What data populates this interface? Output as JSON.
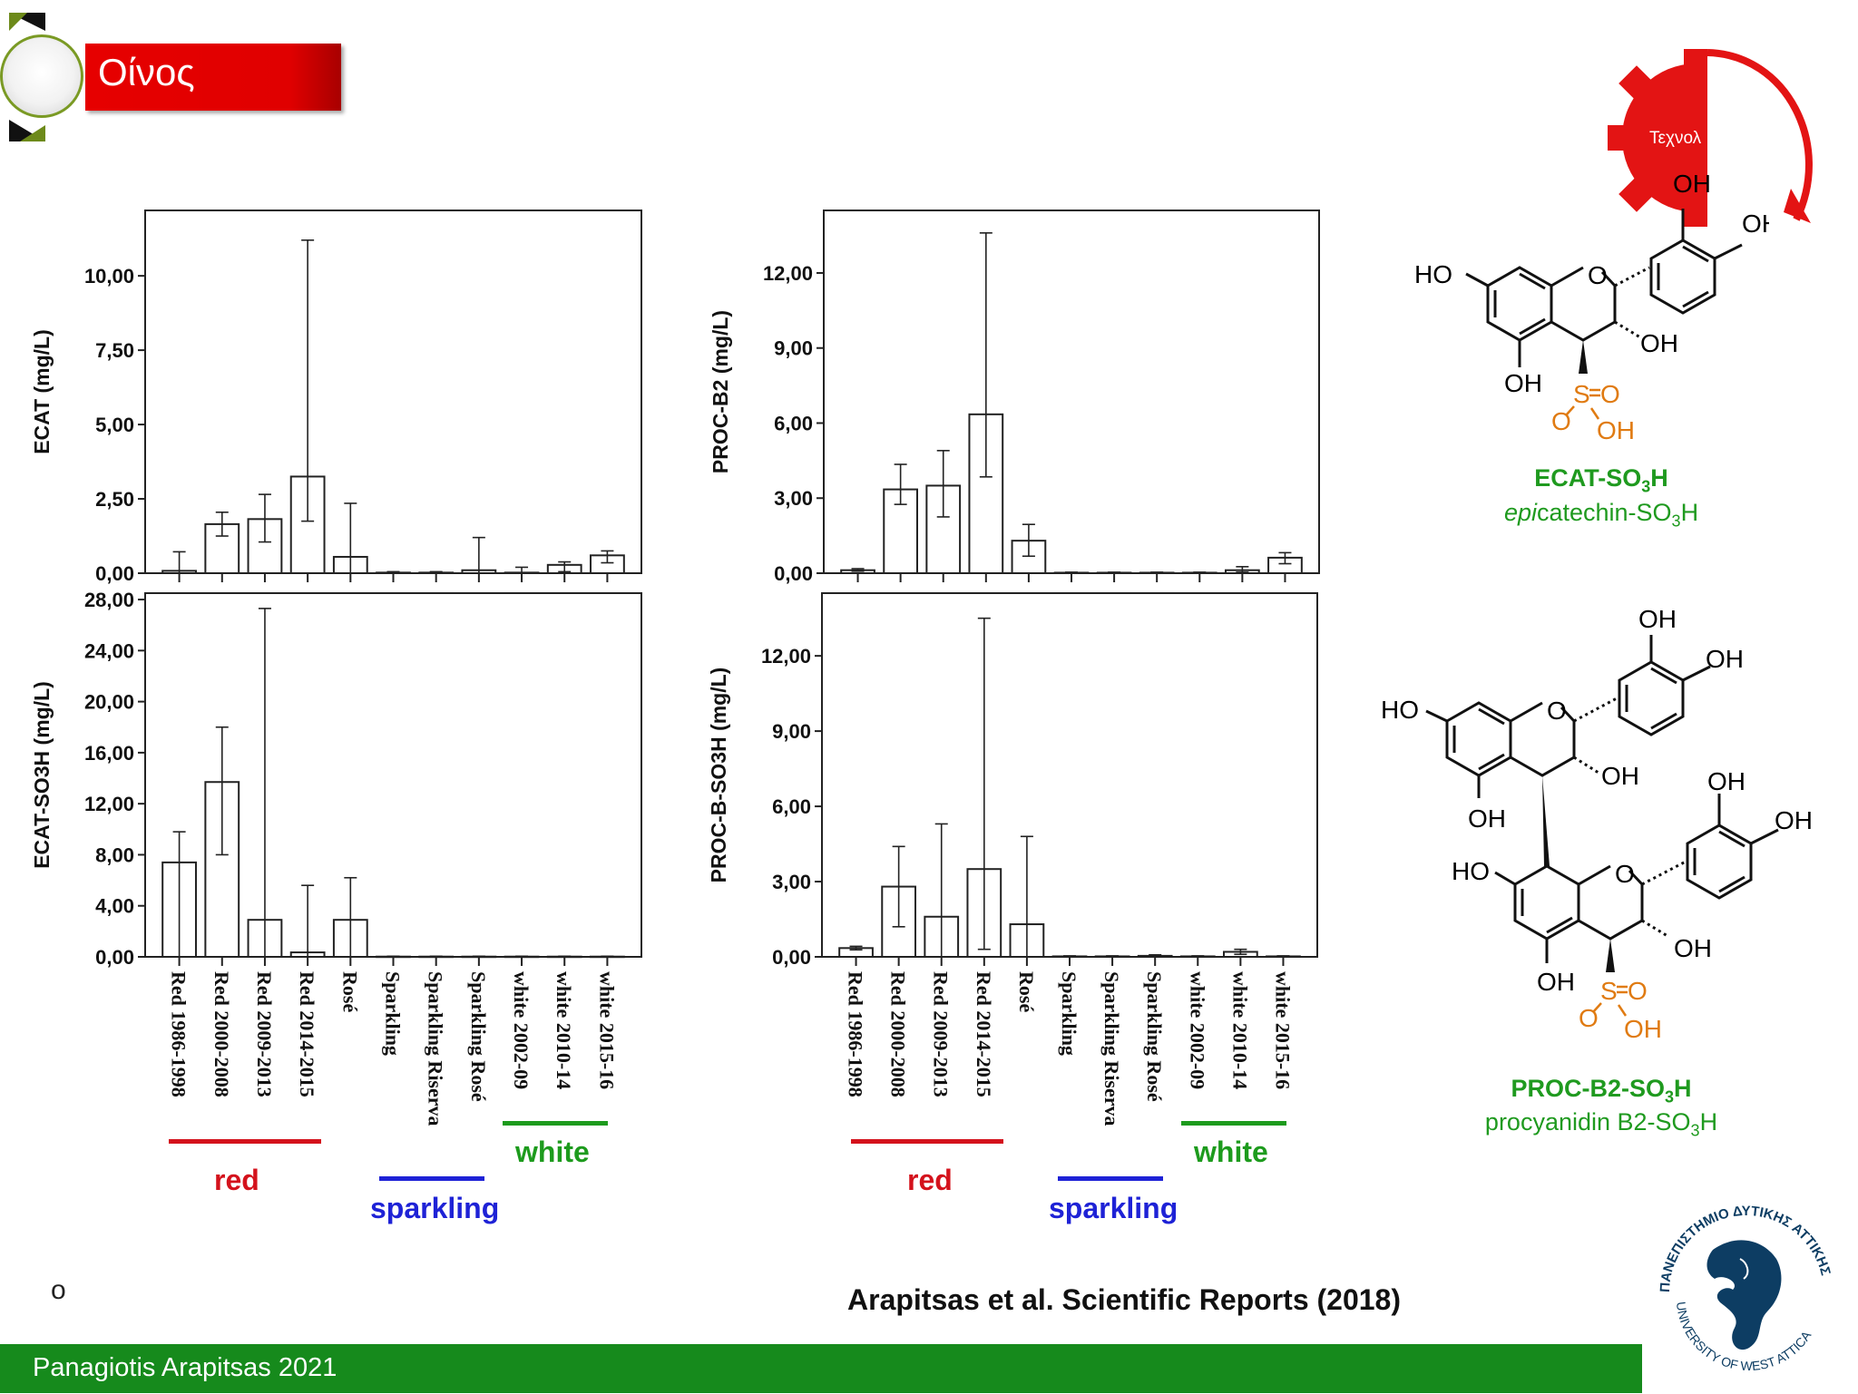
{
  "slide": {
    "title": "Οίνος",
    "footer": "Panagiotis Arapitsas 2021",
    "citation": "Arapitsas et al. Scientific Reports (2018)",
    "bullet": "o",
    "gear_label": "Τεχνολ"
  },
  "colors": {
    "red": "#d4121c",
    "blue": "#1e22d6",
    "green": "#1d9b1d",
    "footer": "#168a1c",
    "orange": "#e07b12"
  },
  "groups": [
    {
      "label": "red",
      "color": "#d4121c"
    },
    {
      "label": "sparkling",
      "color": "#1e22d6"
    },
    {
      "label": "white",
      "color": "#1d9b1d"
    }
  ],
  "chart_data": [
    {
      "type": "bar",
      "ylabel": "ECAT  (mg/L)",
      "yticks": [
        "0,00",
        "2,50",
        "5,00",
        "7,50",
        "10,00"
      ],
      "ylim": [
        0,
        12.2
      ],
      "categories": [
        "Red 1986-1998",
        "Red 2000-2008",
        "Red 2009-2013",
        "Red 2014-2015",
        "Rosé",
        "Sparkling",
        "Sparkling Riserva",
        "Sparkling Rosé",
        "white 2002-09",
        "white 2010-14",
        "white 2015-16"
      ],
      "values": [
        0.08,
        1.65,
        1.82,
        3.25,
        0.55,
        0.02,
        0.02,
        0.1,
        0.02,
        0.28,
        0.6
      ],
      "err_low": [
        -0.5,
        1.25,
        1.05,
        1.75,
        -0.6,
        -0.02,
        -0.02,
        -0.8,
        -0.2,
        0.05,
        0.35
      ],
      "err_high": [
        0.72,
        2.05,
        2.65,
        11.2,
        2.35,
        0.05,
        0.05,
        1.2,
        0.2,
        0.38,
        0.75
      ]
    },
    {
      "type": "bar",
      "ylabel": "PROC-B2  (mg/L)",
      "yticks": [
        "0,00",
        "3,00",
        "6,00",
        "9,00",
        "12,00"
      ],
      "ylim": [
        0,
        14.5
      ],
      "categories": [
        "Red 1986-1998",
        "Red 2000-2008",
        "Red 2009-2013",
        "Red 2014-2015",
        "Rosé",
        "Sparkling",
        "Sparkling Riserva",
        "Sparkling Rosé",
        "white 2002-09",
        "white 2010-14",
        "white 2015-16"
      ],
      "values": [
        0.12,
        3.35,
        3.5,
        6.35,
        1.3,
        0.02,
        0.02,
        0.02,
        0.02,
        0.12,
        0.62
      ],
      "err_low": [
        0.08,
        2.75,
        2.25,
        3.85,
        0.68,
        0.0,
        0.0,
        0.0,
        0.0,
        0.04,
        0.38
      ],
      "err_high": [
        0.18,
        4.35,
        4.9,
        13.6,
        1.95,
        0.04,
        0.04,
        0.04,
        0.04,
        0.26,
        0.82
      ]
    },
    {
      "type": "bar",
      "ylabel": "ECAT-SO3H  (mg/L)",
      "yticks": [
        "0,00",
        "4,00",
        "8,00",
        "12,00",
        "16,00",
        "20,00",
        "24,00",
        "28,00"
      ],
      "ylim": [
        0,
        28.5
      ],
      "categories": [
        "Red 1986-1998",
        "Red 2000-2008",
        "Red 2009-2013",
        "Red 2014-2015",
        "Rosé",
        "Sparkling",
        "Sparkling Riserva",
        "Sparkling Rosé",
        "white 2002-09",
        "white 2010-14",
        "white 2015-16"
      ],
      "values": [
        7.4,
        13.7,
        2.9,
        0.35,
        2.9,
        0.02,
        0.02,
        0.02,
        0.02,
        0.02,
        0.02
      ],
      "err_low": [
        0.0,
        8.0,
        0.0,
        0.0,
        0.0,
        0.0,
        0.0,
        0.0,
        0.0,
        0.0,
        0.0
      ],
      "err_high": [
        9.8,
        18.0,
        27.3,
        5.6,
        6.2,
        0.05,
        0.05,
        0.05,
        0.05,
        0.05,
        0.05
      ]
    },
    {
      "type": "bar",
      "ylabel": "PROC-B-SO3H  (mg/L)",
      "yticks": [
        "0,00",
        "3,00",
        "6,00",
        "9,00",
        "12,00"
      ],
      "ylim": [
        0,
        14.5
      ],
      "categories": [
        "Red 1986-1998",
        "Red 2000-2008",
        "Red 2009-2013",
        "Red 2014-2015",
        "Rosé",
        "Sparkling",
        "Sparkling Riserva",
        "Sparkling Rosé",
        "white 2002-09",
        "white 2010-14",
        "white 2015-16"
      ],
      "values": [
        0.35,
        2.8,
        1.6,
        3.5,
        1.3,
        0.02,
        0.02,
        0.04,
        0.02,
        0.2,
        0.02
      ],
      "err_low": [
        0.28,
        1.2,
        0.0,
        0.3,
        0.0,
        0.0,
        0.0,
        0.0,
        0.0,
        0.1,
        0.0
      ],
      "err_high": [
        0.42,
        4.4,
        5.3,
        13.5,
        4.8,
        0.04,
        0.04,
        0.08,
        0.04,
        0.3,
        0.04
      ]
    }
  ],
  "structures": {
    "ecat": {
      "bold_name": "ECAT-SO",
      "bold_sub": "3",
      "bold_tail": "H",
      "italic_prefix": "epi",
      "name_rest": "catechin-SO",
      "name_sub": "3",
      "name_tail": "H"
    },
    "proc": {
      "bold_name": "PROC-B2-SO",
      "bold_sub": "3",
      "bold_tail": "H",
      "name_rest": "procyanidin B2-SO",
      "name_sub": "3",
      "name_tail": "H"
    },
    "atoms": {
      "oh": "OH",
      "ho": "HO",
      "o": "O",
      "s": "S"
    }
  },
  "logo": {
    "text_top": "ΠΑΝΕΠΙΣΤΗΜΙΟ ΔΥΤΙΚΗΣ ΑΤΤΙΚΗΣ",
    "text_bottom": "UNIVERSITY OF WEST ATTICA"
  }
}
